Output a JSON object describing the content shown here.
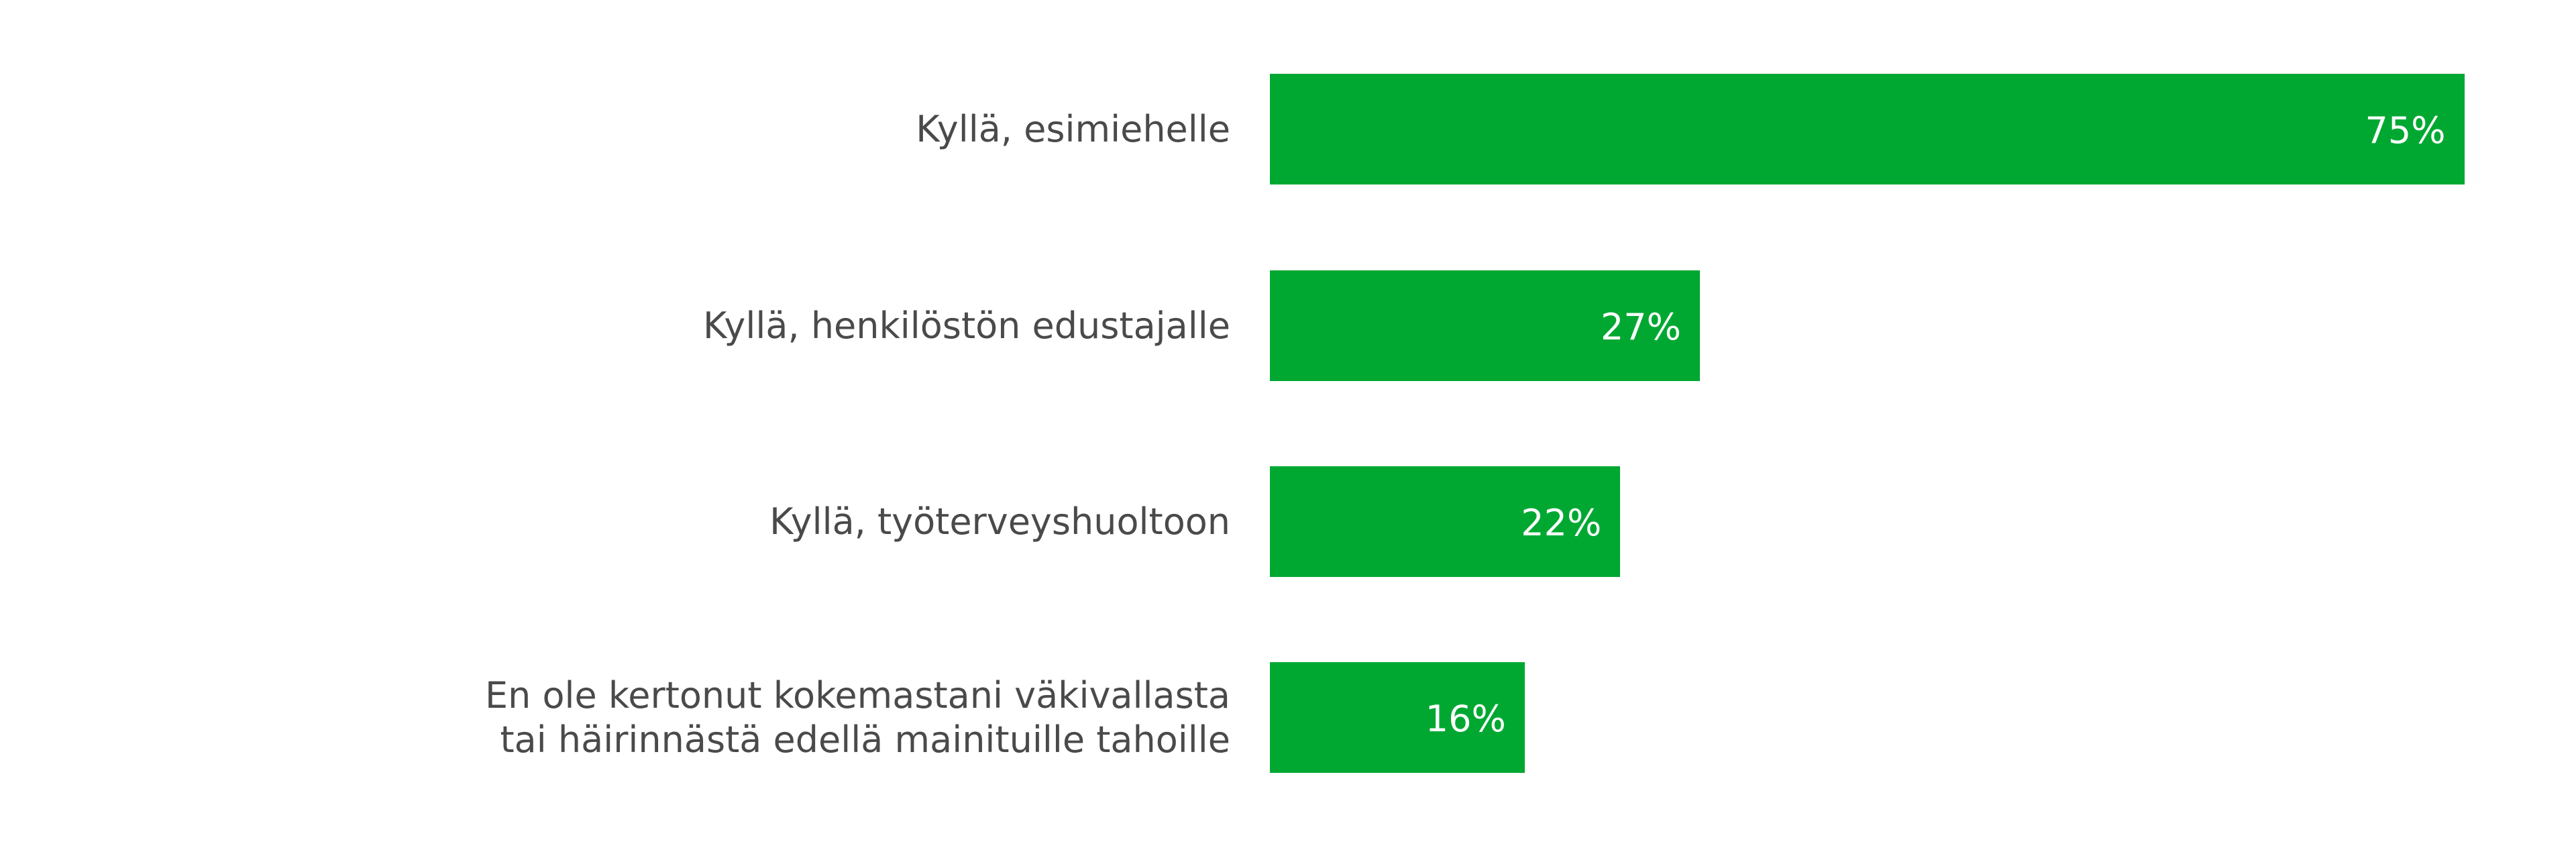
{
  "chart_data": {
    "type": "bar",
    "orientation": "horizontal",
    "categories": [
      "Kyllä, esimiehelle",
      "Kyllä, henkilöstön edustajalle",
      "Kyllä, työterveyshuoltoon",
      "En ole kertonut kokemastani väkivallasta\ntai häirinnästä edellä mainituille tahoille"
    ],
    "values": [
      75,
      27,
      22,
      16
    ],
    "value_labels": [
      "75%",
      "27%",
      "22%",
      "16%"
    ],
    "color": "#00a832"
  }
}
